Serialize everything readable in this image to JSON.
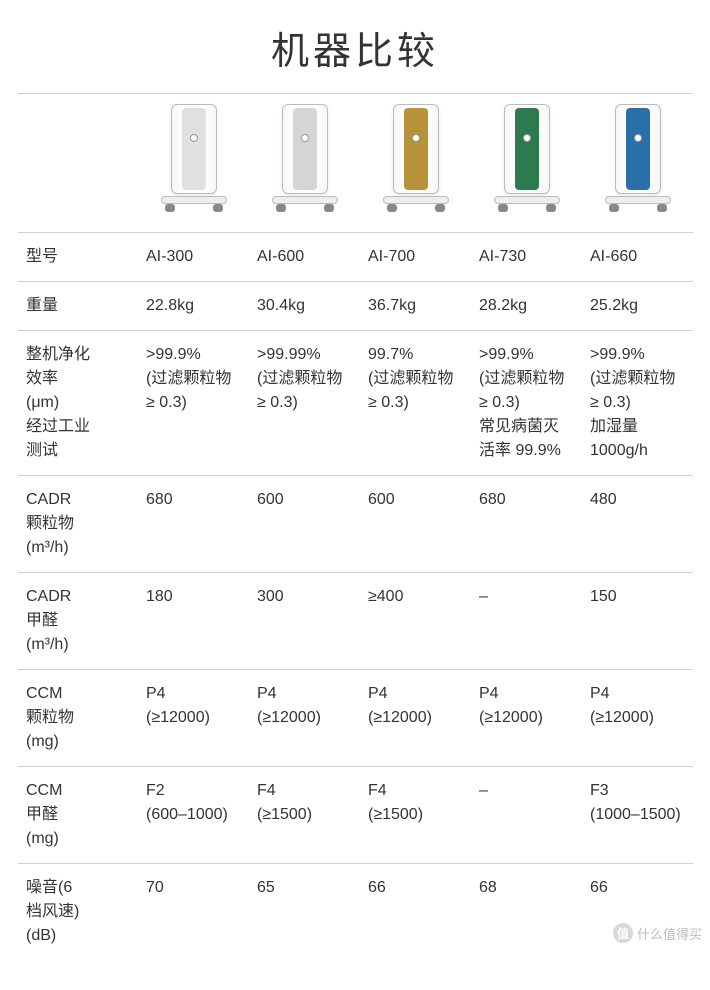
{
  "title": "机器比较",
  "product_colors": [
    "#e0e0e0",
    "#d5d5d5",
    "#b8923a",
    "#2e7a4f",
    "#2a6fa8"
  ],
  "columns": [
    "型号",
    "重量",
    "整机净化效率 (μm) 经过工业测试",
    "CADR 颗粒物 (m³/h)",
    "CADR 甲醛 (m³/h)",
    "CCM 颗粒物 (mg)",
    "CCM 甲醛 (mg)",
    "噪音(6档风速) (dB)"
  ],
  "row_labels": {
    "model": "型号",
    "weight": "重量",
    "efficiency_l1": "整机净化",
    "efficiency_l2": "效率",
    "efficiency_l3": "(μm)",
    "efficiency_l4": "经过工业",
    "efficiency_l5": "测试",
    "cadr_p_l1": "CADR",
    "cadr_p_l2": "颗粒物",
    "cadr_p_l3": "(m³/h)",
    "cadr_f_l1": "CADR",
    "cadr_f_l2": "甲醛",
    "cadr_f_l3": "(m³/h)",
    "ccm_p_l1": "CCM",
    "ccm_p_l2": "颗粒物",
    "ccm_p_l3": "(mg)",
    "ccm_f_l1": "CCM",
    "ccm_f_l2": "甲醛",
    "ccm_f_l3": "(mg)",
    "noise_l1": "噪音(6",
    "noise_l2": "档风速)",
    "noise_l3": "(dB)"
  },
  "data": {
    "model": [
      "AI-300",
      "AI-600",
      "AI-700",
      "AI-730",
      "AI-660"
    ],
    "weight": [
      "22.8kg",
      "30.4kg",
      "36.7kg",
      "28.2kg",
      "25.2kg"
    ],
    "eff_0": [
      ">99.9%",
      "(过滤颗粒物",
      "≥ 0.3)",
      "",
      ""
    ],
    "eff_1": [
      ">99.99%",
      "(过滤颗粒物",
      "≥ 0.3)",
      "",
      ""
    ],
    "eff_2": [
      "99.7%",
      "(过滤颗粒物",
      "≥ 0.3)",
      "",
      ""
    ],
    "eff_3": [
      ">99.9%",
      "(过滤颗粒物",
      "≥ 0.3)",
      "常见病菌灭",
      "活率 99.9%"
    ],
    "eff_4": [
      ">99.9%",
      "(过滤颗粒物",
      "≥ 0.3)",
      "加湿量",
      "1000g/h"
    ],
    "cadr_p": [
      "680",
      "600",
      "600",
      "680",
      "480"
    ],
    "cadr_f": [
      "180",
      "300",
      "≥400",
      "–",
      "150"
    ],
    "ccm_p_0": [
      "P4",
      "(≥12000)"
    ],
    "ccm_p_1": [
      "P4",
      "(≥12000)"
    ],
    "ccm_p_2": [
      "P4",
      "(≥12000)"
    ],
    "ccm_p_3": [
      "P4",
      "(≥12000)"
    ],
    "ccm_p_4": [
      "P4",
      "(≥12000)"
    ],
    "ccm_f_0": [
      "F2",
      "(600–1000)"
    ],
    "ccm_f_1": [
      "F4",
      "(≥1500)"
    ],
    "ccm_f_2": [
      "F4",
      "(≥1500)"
    ],
    "ccm_f_3": [
      "–",
      ""
    ],
    "ccm_f_4": [
      "F3",
      "(1000–1500)"
    ],
    "noise": [
      "70",
      "65",
      "66",
      "68",
      "66"
    ]
  },
  "watermark": {
    "badge": "值",
    "text": "什么值得买"
  },
  "style": {
    "background": "#ffffff",
    "text_color": "#333333",
    "border_color": "#d0d0d0",
    "title_fontsize": 38,
    "cell_fontsize": 16
  }
}
